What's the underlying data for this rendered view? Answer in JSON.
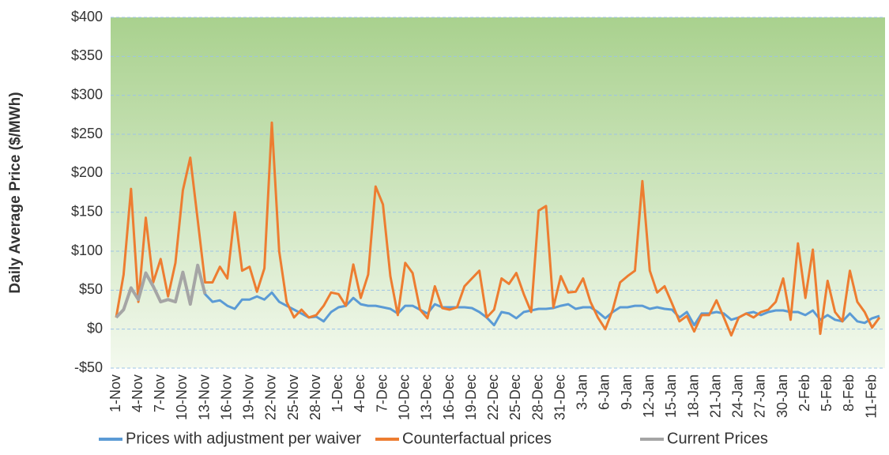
{
  "chart_data": {
    "type": "line",
    "y_label": "Daily Average Price ($/MWh)",
    "categories": [
      "1-Nov",
      null,
      null,
      "4-Nov",
      null,
      null,
      "7-Nov",
      null,
      null,
      "10-Nov",
      null,
      null,
      "13-Nov",
      null,
      null,
      "16-Nov",
      null,
      null,
      "19-Nov",
      null,
      null,
      "22-Nov",
      null,
      null,
      "25-Nov",
      null,
      null,
      "28-Nov",
      null,
      null,
      "1-Dec",
      null,
      null,
      "4-Dec",
      null,
      null,
      "7-Dec",
      null,
      null,
      "10-Dec",
      null,
      null,
      "13-Dec",
      null,
      null,
      "16-Dec",
      null,
      null,
      "19-Dec",
      null,
      null,
      "22-Dec",
      null,
      null,
      "25-Dec",
      null,
      null,
      "28-Dec",
      null,
      null,
      "31-Dec",
      null,
      null,
      "3-Jan",
      null,
      null,
      "6-Jan",
      null,
      null,
      "9-Jan",
      null,
      null,
      "12-Jan",
      null,
      null,
      "15-Jan",
      null,
      null,
      "18-Jan",
      null,
      null,
      "21-Jan",
      null,
      null,
      "24-Jan",
      null,
      null,
      "27-Jan",
      null,
      null,
      "30-Jan",
      null,
      null,
      "2-Feb",
      null,
      null,
      "5-Feb",
      null,
      null,
      "8-Feb",
      null,
      null,
      "11-Feb",
      null
    ],
    "series": [
      {
        "name": "Prices with adjustment per waiver",
        "color": "#5b9bd5",
        "values": [
          15,
          25,
          52,
          39,
          71,
          54,
          35,
          38,
          35,
          72,
          32,
          81,
          45,
          35,
          37,
          30,
          26,
          38,
          38,
          42,
          38,
          47,
          35,
          30,
          25,
          20,
          15,
          16,
          10,
          22,
          28,
          30,
          40,
          32,
          30,
          30,
          28,
          26,
          20,
          30,
          30,
          25,
          20,
          32,
          28,
          28,
          28,
          28,
          27,
          22,
          15,
          5,
          22,
          20,
          14,
          22,
          24,
          26,
          26,
          27,
          30,
          32,
          26,
          28,
          28,
          22,
          14,
          22,
          28,
          28,
          30,
          30,
          26,
          28,
          26,
          25,
          15,
          22,
          5,
          20,
          20,
          22,
          20,
          12,
          15,
          20,
          22,
          18,
          22,
          24,
          24,
          22,
          22,
          18,
          24,
          12,
          18,
          12,
          10,
          20,
          10,
          8,
          14,
          17
        ]
      },
      {
        "name": "Counterfactual prices",
        "color": "#ed7d31",
        "values": [
          15,
          70,
          180,
          35,
          143,
          60,
          90,
          42,
          85,
          178,
          220,
          140,
          60,
          60,
          80,
          65,
          150,
          75,
          80,
          48,
          78,
          265,
          100,
          35,
          15,
          25,
          15,
          18,
          30,
          47,
          45,
          30,
          83,
          40,
          70,
          183,
          160,
          68,
          18,
          85,
          72,
          25,
          14,
          55,
          27,
          25,
          28,
          55,
          65,
          75,
          15,
          25,
          65,
          58,
          72,
          45,
          22,
          152,
          158,
          28,
          68,
          47,
          48,
          65,
          35,
          15,
          0,
          25,
          60,
          68,
          75,
          190,
          75,
          47,
          55,
          33,
          10,
          17,
          -3,
          18,
          18,
          37,
          15,
          -8,
          15,
          20,
          15,
          22,
          25,
          35,
          65,
          12,
          110,
          40,
          102,
          -6,
          62,
          22,
          10,
          75,
          35,
          22,
          2,
          15
        ]
      },
      {
        "name": "Current Prices",
        "color": "#a5a5a5",
        "values": [
          15,
          25,
          53,
          38,
          72,
          55,
          35,
          38,
          35,
          73,
          32,
          82,
          45,
          null,
          null,
          null,
          null,
          null,
          null,
          null,
          null,
          null,
          null,
          null,
          null,
          null,
          null,
          null,
          null,
          null,
          null,
          null,
          null,
          null,
          null,
          null,
          null,
          null,
          null,
          null,
          null,
          null,
          null,
          null,
          null,
          null,
          null,
          null,
          null,
          null,
          null,
          null,
          null,
          null,
          null,
          null,
          null,
          null,
          null,
          null,
          null,
          null,
          null,
          null,
          null,
          null,
          null,
          null,
          null,
          null,
          null,
          null,
          null,
          null,
          null,
          null,
          null,
          null,
          null,
          null,
          null,
          null,
          null,
          null,
          null,
          null,
          null,
          null,
          null,
          null,
          null,
          null,
          null,
          null,
          null,
          null,
          null,
          null,
          null,
          null,
          null,
          null,
          null,
          null
        ]
      }
    ],
    "ylim": [
      -50,
      400
    ],
    "yticks": [
      {
        "value": -50,
        "label": "-$50"
      },
      {
        "value": 0,
        "label": "$0"
      },
      {
        "value": 50,
        "label": "$50"
      },
      {
        "value": 100,
        "label": "$100"
      },
      {
        "value": 150,
        "label": "$150"
      },
      {
        "value": 200,
        "label": "$200"
      },
      {
        "value": 250,
        "label": "$250"
      },
      {
        "value": 300,
        "label": "$300"
      },
      {
        "value": 350,
        "label": "$350"
      },
      {
        "value": 400,
        "label": "$400"
      }
    ],
    "grid": true,
    "legend": "bottom"
  }
}
